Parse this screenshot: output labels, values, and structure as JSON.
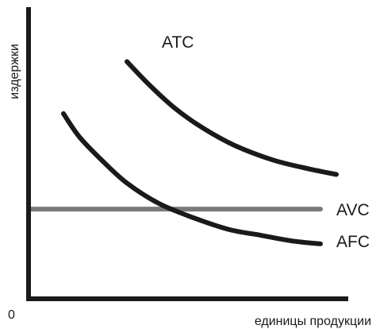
{
  "chart_data": {
    "type": "line",
    "title": "",
    "xlabel": "единицы продукции",
    "ylabel": "издержки",
    "origin_label": "0",
    "xlim": [
      0,
      100
    ],
    "ylim": [
      0,
      100
    ],
    "grid": false,
    "legend": "inline-labels",
    "series": [
      {
        "name": "ATC",
        "color": "#1a1a1a",
        "label_at": [
          42,
          89
        ],
        "x": [
          31,
          38,
          46,
          55,
          65,
          77,
          88,
          97
        ],
        "y": [
          82,
          74,
          66,
          59,
          53,
          48,
          45,
          43
        ]
      },
      {
        "name": "AVC",
        "color": "#7a7a7a",
        "label_at": [
          97,
          31
        ],
        "x": [
          0,
          92
        ],
        "y": [
          31,
          31
        ]
      },
      {
        "name": "AFC",
        "color": "#1a1a1a",
        "label_at": [
          97,
          20
        ],
        "x": [
          11,
          16,
          23,
          31,
          41,
          52,
          63,
          73,
          83,
          92
        ],
        "y": [
          64,
          56,
          48,
          40,
          33,
          28,
          24,
          22,
          20,
          19
        ]
      }
    ]
  }
}
